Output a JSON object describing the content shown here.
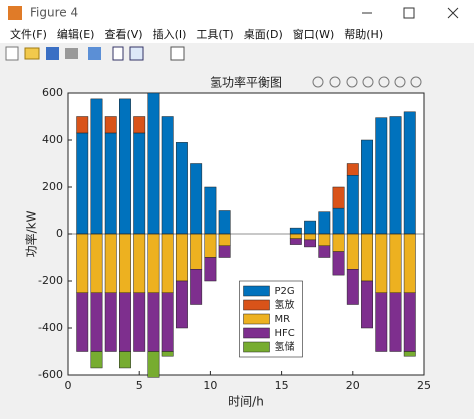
{
  "window": {
    "title": "Figure 4",
    "menu": [
      "文件(F)",
      "编辑(E)",
      "查看(V)",
      "插入(I)",
      "工具(T)",
      "桌面(D)",
      "窗口(W)",
      "帮助(H)"
    ]
  },
  "chart_data": {
    "type": "stacked_bar",
    "title": "氢功率平衡图",
    "xlabel": "时间/h",
    "ylabel": "功率/kW",
    "x": [
      1,
      2,
      3,
      4,
      5,
      6,
      7,
      8,
      9,
      10,
      11,
      12,
      13,
      14,
      15,
      16,
      17,
      18,
      19,
      20,
      21,
      22,
      23,
      24
    ],
    "series": [
      {
        "name": "P2G",
        "color": "#0072BD",
        "values": [
          430,
          575,
          430,
          575,
          430,
          600,
          500,
          390,
          300,
          200,
          100,
          0,
          0,
          0,
          0,
          25,
          55,
          95,
          110,
          250,
          400,
          495,
          500,
          520
        ]
      },
      {
        "name": "氢放",
        "color": "#D95319",
        "values": [
          70,
          0,
          70,
          0,
          70,
          0,
          0,
          0,
          0,
          0,
          0,
          0,
          0,
          0,
          0,
          0,
          0,
          0,
          90,
          50,
          0,
          0,
          0,
          0
        ]
      },
      {
        "name": "MR",
        "color": "#EDB120",
        "values": [
          -250,
          -250,
          -250,
          -250,
          -250,
          -250,
          -250,
          -200,
          -150,
          -100,
          -50,
          0,
          0,
          0,
          0,
          -20,
          -25,
          -50,
          -75,
          -150,
          -200,
          -250,
          -250,
          -250
        ]
      },
      {
        "name": "HFC",
        "color": "#7E2F8E",
        "values": [
          -250,
          -250,
          -250,
          -250,
          -250,
          -250,
          -250,
          -200,
          -150,
          -100,
          -50,
          0,
          0,
          0,
          0,
          -25,
          -30,
          -50,
          -100,
          -150,
          -200,
          -250,
          -250,
          -250
        ]
      },
      {
        "name": "氢储",
        "color": "#77AC30",
        "values": [
          0,
          -70,
          0,
          -70,
          0,
          -110,
          -20,
          0,
          0,
          0,
          0,
          0,
          0,
          0,
          0,
          0,
          0,
          0,
          0,
          0,
          0,
          0,
          0,
          -20
        ]
      }
    ],
    "xlim": [
      0,
      25
    ],
    "xticks": [
      0,
      5,
      10,
      15,
      20,
      25
    ],
    "ylim": [
      -600,
      600
    ],
    "yticks": [
      -600,
      -400,
      -200,
      0,
      200,
      400,
      600
    ],
    "legend": "south"
  }
}
